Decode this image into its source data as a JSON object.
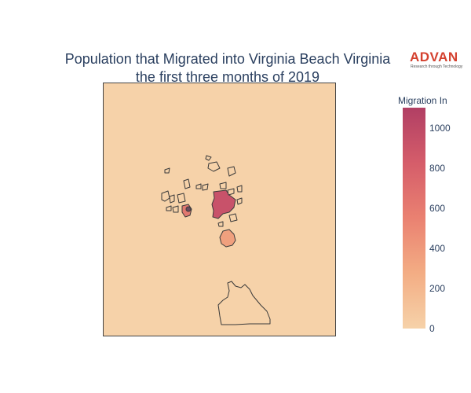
{
  "title_lines": [
    "Population that Migrated into Virginia Beach Virginia",
    "the first three months of 2019"
  ],
  "brand": {
    "name": "ADVAN",
    "tagline": "Research through Technology",
    "color": "#d4412f"
  },
  "map_background_color": "#f6d2a9",
  "colorbar": {
    "title": "Migration In",
    "min": 0,
    "max": 1100,
    "ticks": [
      "0",
      "200",
      "400",
      "600",
      "800",
      "1000"
    ],
    "colors": [
      "#f6d2a9",
      "#f3ad84",
      "#ea8171",
      "#d55d6a",
      "#b13f64"
    ]
  },
  "regions_max_value": 1100,
  "regions": [
    {
      "value": 1100,
      "color": "#c8526a"
    },
    {
      "value": 380,
      "color": "#f0a07e"
    },
    {
      "value": 700,
      "color": "#e07870"
    },
    {
      "value": 60,
      "color": "#f6d2a9"
    }
  ]
}
